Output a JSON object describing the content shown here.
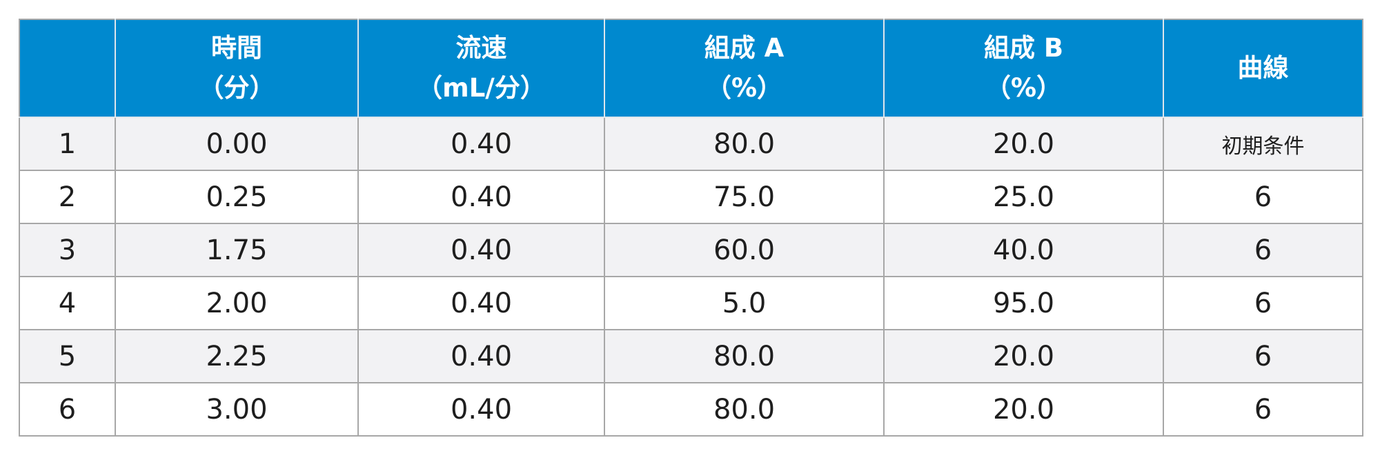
{
  "table": {
    "headers": [
      [
        "",
        ""
      ],
      [
        "時間",
        "（分）"
      ],
      [
        "流速",
        "（mL/分）"
      ],
      [
        "組成 A",
        "（%）"
      ],
      [
        "組成 B",
        "（%）"
      ],
      [
        "曲線",
        ""
      ]
    ],
    "rows": [
      [
        "1",
        "0.00",
        "0.40",
        "80.0",
        "20.0",
        "初期条件"
      ],
      [
        "2",
        "0.25",
        "0.40",
        "75.0",
        "25.0",
        "6"
      ],
      [
        "3",
        "1.75",
        "0.40",
        "60.0",
        "40.0",
        "6"
      ],
      [
        "4",
        "2.00",
        "0.40",
        "5.0",
        "95.0",
        "6"
      ],
      [
        "5",
        "2.25",
        "0.40",
        "80.0",
        "20.0",
        "6"
      ],
      [
        "6",
        "3.00",
        "0.40",
        "80.0",
        "20.0",
        "6"
      ]
    ]
  },
  "colors": {
    "header_bg": "#0089cf",
    "header_text": "#ffffff",
    "row_alt_bg": "#f2f2f4",
    "border": "#a7a7a7"
  }
}
